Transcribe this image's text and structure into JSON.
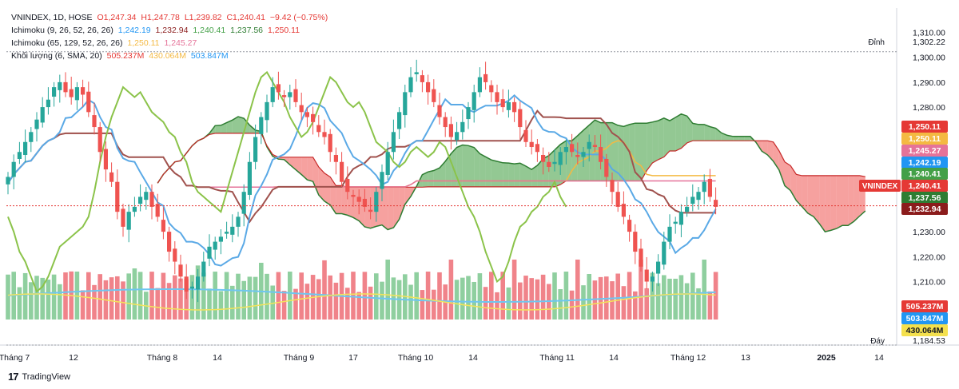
{
  "legend": {
    "main": {
      "label": "VNINDEX, 1D, HOSE",
      "o": "O1,247.34",
      "h": "H1,247.78",
      "l": "L1,239.82",
      "c": "C1,240.41",
      "chg": "−9.42 (−0.75%)"
    },
    "ichi1": {
      "label": "Ichimoku (9, 26, 52, 26, 26)",
      "v1": "1,242.19",
      "v2": "1,232.94",
      "v3": "1,240.41",
      "v4": "1,237.56",
      "v5": "1,250.11"
    },
    "ichi2": {
      "label": "Ichimoku (65, 129, 52, 26, 26)",
      "v1": "1,250.11",
      "v2": "1,245.27"
    },
    "volume": {
      "label": "Khối lượng (6, SMA, 20)",
      "v1": "505.237M",
      "v2": "430.064M",
      "v3": "503.847M"
    }
  },
  "colors": {
    "up": "#26a69a",
    "down": "#ef5350",
    "vol_up": "#8fcf9f",
    "vol_down": "#f0838a",
    "tenkan": "#5aa9e6",
    "kijun": "#a0524e",
    "chikou": "#8bc34a",
    "kijun2": "#f4b942",
    "tenkan2": "#e57399",
    "cloud_green": "#3a9a3a",
    "cloud_red": "#ef5350",
    "vol_ma": "#6ec6f0",
    "vol_ma2": "#f2e45a"
  },
  "brand": "TradingView",
  "chart_data": {
    "type": "candlestick",
    "symbol": "VNINDEX",
    "y_ticks": [
      1200,
      1210,
      1220,
      1230,
      1240,
      1250,
      1260,
      1270,
      1280,
      1290,
      1300,
      1310
    ],
    "ylim": [
      1184.53,
      1314
    ],
    "x_tick_labels": [
      "Tháng 7",
      "12",
      "Tháng 8",
      "14",
      "Tháng 9",
      "17",
      "Tháng 10",
      "14",
      "Tháng 11",
      "14",
      "Tháng 12",
      "13",
      "2025",
      "14"
    ],
    "price_markers": [
      {
        "label": "Đỉnh",
        "value": 1302.22,
        "text": "1,302.22"
      },
      {
        "label": "",
        "value": 1250.11,
        "text": "1,250.11",
        "color": "#e53935"
      },
      {
        "label": "",
        "value": 1250.11,
        "text": "1,250.11",
        "color": "#f4b942"
      },
      {
        "label": "",
        "value": 1245.27,
        "text": "1,245.27",
        "color": "#e57399"
      },
      {
        "label": "",
        "value": 1242.19,
        "text": "1,242.19",
        "color": "#2196f3"
      },
      {
        "label": "",
        "value": 1240.41,
        "text": "1,240.41",
        "color": "#43a047"
      },
      {
        "label": "VNINDEX",
        "value": 1240.41,
        "text": "1,240.41",
        "color": "#e53935"
      },
      {
        "label": "",
        "value": 1237.56,
        "text": "1,237.56",
        "color": "#2e7d32"
      },
      {
        "label": "",
        "value": 1232.94,
        "text": "1,232.94",
        "color": "#8b1c1c"
      },
      {
        "label": "Đáy",
        "value": 1184.53,
        "text": "1,184.53"
      }
    ],
    "volume_markers": [
      {
        "text": "505.237M",
        "color": "#e53935"
      },
      {
        "text": "503.847M",
        "color": "#2196f3"
      },
      {
        "text": "430.064M",
        "color": "#f4e04d"
      }
    ],
    "closes": [
      1252,
      1258,
      1262,
      1266,
      1270,
      1275,
      1280,
      1283,
      1288,
      1290,
      1286,
      1284,
      1288,
      1285,
      1278,
      1272,
      1262,
      1255,
      1250,
      1238,
      1232,
      1238,
      1240,
      1244,
      1246,
      1240,
      1236,
      1230,
      1222,
      1218,
      1212,
      1206,
      1208,
      1212,
      1218,
      1224,
      1226,
      1228,
      1230,
      1232,
      1236,
      1246,
      1258,
      1268,
      1276,
      1282,
      1288,
      1286,
      1284,
      1286,
      1282,
      1278,
      1276,
      1274,
      1270,
      1268,
      1262,
      1258,
      1250,
      1246,
      1244,
      1242,
      1240,
      1238,
      1246,
      1254,
      1262,
      1270,
      1278,
      1286,
      1292,
      1294,
      1290,
      1286,
      1282,
      1276,
      1272,
      1268,
      1270,
      1274,
      1280,
      1286,
      1292,
      1290,
      1286,
      1282,
      1280,
      1282,
      1278,
      1272,
      1266,
      1264,
      1262,
      1258,
      1256,
      1258,
      1262,
      1264,
      1262,
      1260,
      1262,
      1266,
      1264,
      1258,
      1252,
      1246,
      1240,
      1236,
      1230,
      1222,
      1216,
      1210,
      1212,
      1218,
      1226,
      1232,
      1234,
      1238,
      1240,
      1244,
      1246,
      1250,
      1244,
      1240
    ]
  }
}
